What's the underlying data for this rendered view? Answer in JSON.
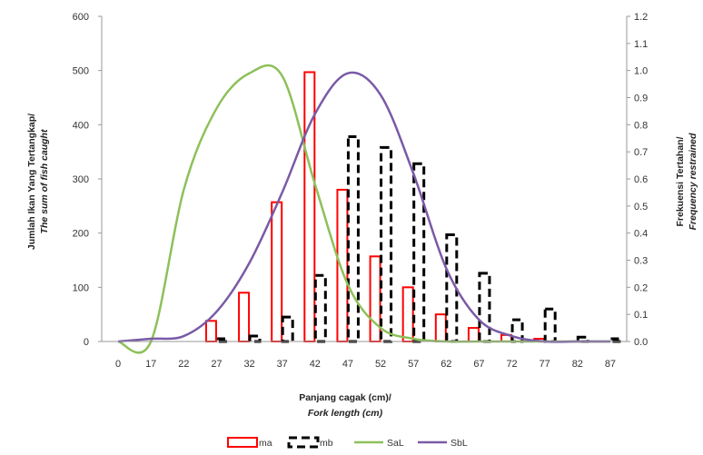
{
  "chart_data": {
    "type": "bar",
    "categories": [
      "0",
      "17",
      "22",
      "27",
      "32",
      "37",
      "42",
      "47",
      "52",
      "57",
      "62",
      "67",
      "72",
      "77",
      "82",
      "87"
    ],
    "xlabel": {
      "line1": "Panjang cagak (cm)/",
      "line2": "Fork length (cm)"
    },
    "ylabel_left": {
      "line1": "Jumlah Ikan Yang Tertangkap/",
      "line2": "The sum of fish caught"
    },
    "ylabel_right": {
      "line1": "Frekuensi Tertahan/",
      "line2": "Frequency restrained"
    },
    "ylim_left": [
      0,
      600
    ],
    "yticks_left": [
      "0",
      "100",
      "200",
      "300",
      "400",
      "500",
      "600"
    ],
    "ylim_right": [
      0,
      1.2
    ],
    "yticks_right": [
      "0.0",
      "0.1",
      "0.2",
      "0.3",
      "0.4",
      "0.5",
      "0.6",
      "0.7",
      "0.8",
      "0.9",
      "1.0",
      "1.1",
      "1.2"
    ],
    "bar_series": [
      {
        "name": "ma",
        "color": "#ff0000",
        "style": "solid",
        "values": [
          0,
          0,
          0,
          38,
          90,
          257,
          497,
          280,
          157,
          100,
          50,
          25,
          12,
          5,
          0,
          0
        ]
      },
      {
        "name": "mb",
        "color": "#000000",
        "style": "dashed",
        "values": [
          0,
          0,
          0,
          5,
          10,
          45,
          122,
          378,
          358,
          328,
          197,
          126,
          40,
          60,
          8,
          5
        ]
      }
    ],
    "line_series": [
      {
        "name": "SaL",
        "color": "#8dc05a",
        "axis": "right",
        "values": [
          0.0,
          0.0,
          0.56,
          0.86,
          0.99,
          0.98,
          0.58,
          0.21,
          0.05,
          0.01,
          0.0,
          0.0,
          0.0,
          0.0,
          0.0,
          0.0
        ]
      },
      {
        "name": "SbL",
        "color": "#7a5aa6",
        "axis": "right",
        "values": [
          0.0,
          0.01,
          0.02,
          0.11,
          0.29,
          0.55,
          0.84,
          0.99,
          0.91,
          0.62,
          0.27,
          0.08,
          0.02,
          0.0,
          0.0,
          0.0
        ]
      }
    ],
    "legend": [
      "ma",
      "mb",
      "SaL",
      "SbL"
    ],
    "legend_position": "bottom",
    "grid": false
  }
}
